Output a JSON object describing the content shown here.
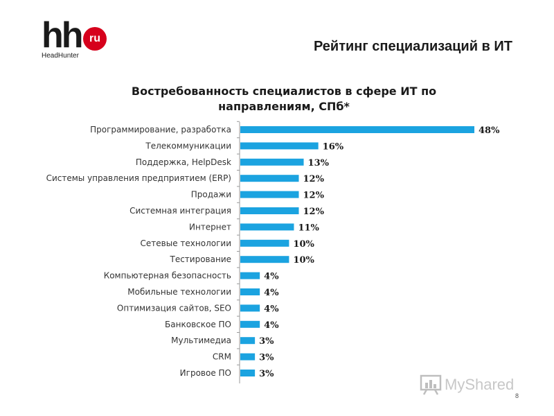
{
  "header": {
    "title": "Рейтинг специализаций в ИТ",
    "logo": {
      "mark": "hh",
      "badge": "ru",
      "subtitle": "HeadHunter",
      "badge_color": "#d6001c"
    }
  },
  "page_number": "8",
  "watermark": {
    "text": "MyShared",
    "icon": "chart-icon"
  },
  "chart_data": {
    "type": "bar",
    "orientation": "horizontal",
    "title": "Востребованность специалистов в сфере ИТ по направлениям, СПб*",
    "title_lines": [
      "Востребованность специалистов в сфере ИТ по",
      "направлениям, СПб*"
    ],
    "categories": [
      "Программирование, разработка",
      "Телекоммуникации",
      "Поддержка, HelpDesk",
      "Системы управления предприятием (ERP)",
      "Продажи",
      "Системная интеграция",
      "Интернет",
      "Сетевые технологии",
      "Тестирование",
      "Компьютерная безопасность",
      "Мобильные технологии",
      "Оптимизация сайтов, SEO",
      "Банковское ПО",
      "Мультимедиа",
      "CRM",
      "Игровое ПО"
    ],
    "values": [
      48,
      16,
      13,
      12,
      12,
      12,
      11,
      10,
      10,
      4,
      4,
      4,
      4,
      3,
      3,
      3
    ],
    "value_suffix": "%",
    "xlim": [
      0,
      48
    ],
    "bar_color": "#1ba3e0",
    "grid": false,
    "legend": "none"
  }
}
